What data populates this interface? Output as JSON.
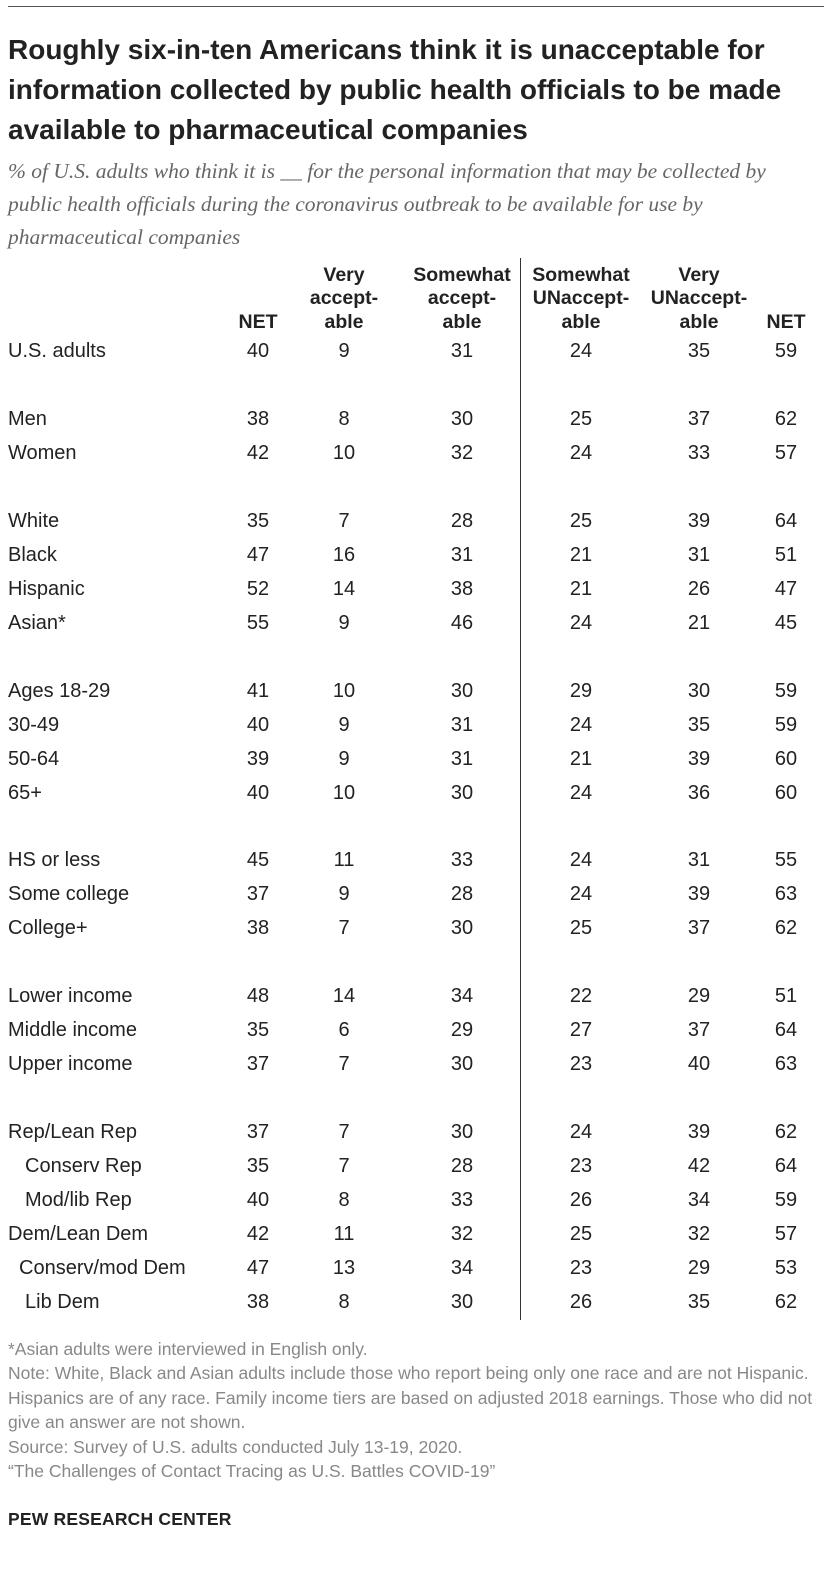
{
  "title": "Roughly six-in-ten Americans think it is unacceptable for information collected by public health officials to be made available to pharmaceutical companies",
  "subtitle": "% of U.S. adults who think it is __ for the personal information that may be collected by public health officials during the coronavirus outbreak to be available for use by pharmaceutical companies",
  "chart_data": {
    "type": "table",
    "columns": [
      {
        "name": "NET",
        "lines": [
          "NET"
        ]
      },
      {
        "name": "Very acceptable",
        "lines": [
          "Very",
          "accept-",
          "able"
        ]
      },
      {
        "name": "Somewhat acceptable",
        "lines": [
          "Somewhat",
          "accept-",
          "able"
        ]
      },
      {
        "name": "Somewhat UNacceptable",
        "lines": [
          "Somewhat",
          "UNaccept-",
          "able"
        ]
      },
      {
        "name": "Very UNacceptable",
        "lines": [
          "Very",
          "UNaccept-",
          "able"
        ]
      },
      {
        "name": "NET",
        "lines": [
          "NET"
        ]
      }
    ],
    "rows": [
      {
        "label": "U.S. adults",
        "values": [
          "40",
          "9",
          "31",
          "24",
          "35",
          "59"
        ]
      },
      {
        "label": "Men",
        "values": [
          "38",
          "8",
          "30",
          "25",
          "37",
          "62"
        ]
      },
      {
        "label": "Women",
        "values": [
          "42",
          "10",
          "32",
          "24",
          "33",
          "57"
        ]
      },
      {
        "label": "White",
        "values": [
          "35",
          "7",
          "28",
          "25",
          "39",
          "64"
        ]
      },
      {
        "label": "Black",
        "values": [
          "47",
          "16",
          "31",
          "21",
          "31",
          "51"
        ]
      },
      {
        "label": "Hispanic",
        "values": [
          "52",
          "14",
          "38",
          "21",
          "26",
          "47"
        ]
      },
      {
        "label": "Asian*",
        "values": [
          "55",
          "9",
          "46",
          "24",
          "21",
          "45"
        ]
      },
      {
        "label": "Ages 18-29",
        "values": [
          "41",
          "10",
          "30",
          "29",
          "30",
          "59"
        ]
      },
      {
        "label": "30-49",
        "values": [
          "40",
          "9",
          "31",
          "24",
          "35",
          "59"
        ]
      },
      {
        "label": "50-64",
        "values": [
          "39",
          "9",
          "31",
          "21",
          "39",
          "60"
        ]
      },
      {
        "label": "65+",
        "values": [
          "40",
          "10",
          "30",
          "24",
          "36",
          "60"
        ]
      },
      {
        "label": "HS or less",
        "values": [
          "45",
          "11",
          "33",
          "24",
          "31",
          "55"
        ]
      },
      {
        "label": "Some college",
        "values": [
          "37",
          "9",
          "28",
          "24",
          "39",
          "63"
        ]
      },
      {
        "label": "College+",
        "values": [
          "38",
          "7",
          "30",
          "25",
          "37",
          "62"
        ]
      },
      {
        "label": "Lower income",
        "values": [
          "48",
          "14",
          "34",
          "22",
          "29",
          "51"
        ]
      },
      {
        "label": "Middle income",
        "values": [
          "35",
          "6",
          "29",
          "27",
          "37",
          "64"
        ]
      },
      {
        "label": "Upper income",
        "values": [
          "37",
          "7",
          "30",
          "23",
          "40",
          "63"
        ]
      },
      {
        "label": "Rep/Lean Rep",
        "values": [
          "37",
          "7",
          "30",
          "24",
          "39",
          "62"
        ]
      },
      {
        "label": "Conserv Rep",
        "values": [
          "35",
          "7",
          "28",
          "23",
          "42",
          "64"
        ]
      },
      {
        "label": "Mod/lib Rep",
        "values": [
          "40",
          "8",
          "33",
          "26",
          "34",
          "59"
        ]
      },
      {
        "label": "Dem/Lean Dem",
        "values": [
          "42",
          "11",
          "32",
          "25",
          "32",
          "57"
        ]
      },
      {
        "label": "Conserv/mod Dem",
        "values": [
          "47",
          "13",
          "34",
          "23",
          "29",
          "53"
        ]
      },
      {
        "label": "Lib Dem",
        "values": [
          "38",
          "8",
          "30",
          "26",
          "35",
          "62"
        ]
      }
    ]
  },
  "notes": [
    "*Asian adults were interviewed in English only.",
    "Note: White, Black and Asian adults include those who report being only one race and are not Hispanic. Hispanics are of any race. Family income tiers are based on adjusted 2018 earnings. Those who did not give an answer are not shown.",
    "Source: Survey of U.S. adults conducted July 13-19, 2020.",
    "“The Challenges of Contact Tracing as U.S. Battles COVID-19”"
  ],
  "brand": "PEW RESEARCH CENTER"
}
